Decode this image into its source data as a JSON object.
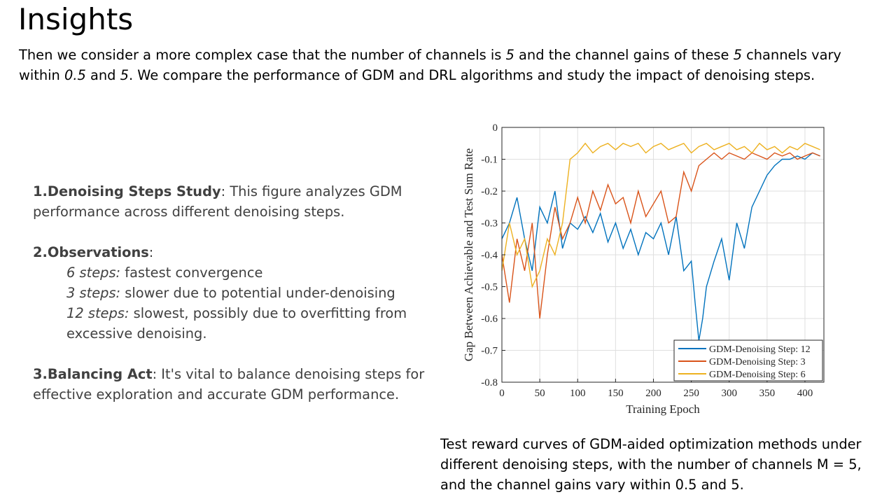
{
  "slide": {
    "title": "Insights",
    "intro_p1": "Then we consider a more complex case that the number of channels is ",
    "intro_i1": "5",
    "intro_p2": " and the channel gains of these ",
    "intro_i2": "5",
    "intro_p3": " channels vary",
    "intro_p4": "within ",
    "intro_i3": "0.5",
    "intro_p5": " and ",
    "intro_i4": "5",
    "intro_p6": ". We compare the performance of GDM and DRL algorithms and study the impact of denoising steps.",
    "points": {
      "p1_head": "1.Denoising Steps Study",
      "p1_line1": ": This figure analyzes GDM",
      "p1_line2": "performance across different denoising steps.",
      "p2_head": "2.Observations",
      "p2_colon": ":",
      "s1_head": "6 steps:",
      "s1_text": " fastest convergence",
      "s2_head": "3 steps:",
      "s2_text": " slower due to potential under-denoising",
      "s3_head": "12 steps:",
      "s3_text": " slowest, possibly due to overfitting from",
      "s3_text2": "excessive denoising.",
      "p3_head": "3.Balancing Act",
      "p3_line1": ": It's vital to balance denoising steps for",
      "p3_line2": "effective exploration and accurate GDM performance."
    },
    "caption": {
      "line1": "Test reward curves of GDM-aided optimization methods under",
      "line2": "different denoising steps, with the number of channels M = 5,",
      "line3": "and the channel gains vary within 0.5 and 5."
    }
  },
  "chart_data": {
    "type": "line",
    "xlabel": "Training Epoch",
    "ylabel": "Gap Between Achievable and Test Sum Rate",
    "xlim": [
      0,
      425
    ],
    "ylim": [
      -0.8,
      0
    ],
    "xticks": [
      0,
      50,
      100,
      150,
      200,
      250,
      300,
      350,
      400
    ],
    "yticks": [
      0,
      -0.1,
      -0.2,
      -0.3,
      -0.4,
      -0.5,
      -0.6,
      -0.7,
      -0.8
    ],
    "grid": true,
    "legend_position": "bottom-right",
    "series": [
      {
        "name": "GDM-Denoising Step: 12",
        "color": "#0072BD",
        "x": [
          0,
          10,
          20,
          30,
          40,
          50,
          60,
          70,
          80,
          90,
          100,
          110,
          120,
          130,
          140,
          150,
          160,
          170,
          180,
          190,
          200,
          210,
          220,
          230,
          240,
          250,
          255,
          260,
          265,
          270,
          280,
          290,
          300,
          310,
          320,
          330,
          340,
          350,
          360,
          370,
          380,
          390,
          400,
          410,
          420
        ],
        "values": [
          -0.35,
          -0.3,
          -0.22,
          -0.35,
          -0.45,
          -0.25,
          -0.3,
          -0.2,
          -0.38,
          -0.3,
          -0.32,
          -0.28,
          -0.33,
          -0.27,
          -0.36,
          -0.3,
          -0.38,
          -0.32,
          -0.4,
          -0.33,
          -0.35,
          -0.3,
          -0.4,
          -0.28,
          -0.45,
          -0.42,
          -0.55,
          -0.67,
          -0.6,
          -0.5,
          -0.42,
          -0.35,
          -0.48,
          -0.3,
          -0.38,
          -0.25,
          -0.2,
          -0.15,
          -0.12,
          -0.1,
          -0.1,
          -0.09,
          -0.1,
          -0.08,
          -0.09
        ]
      },
      {
        "name": "GDM-Denoising Step: 3",
        "color": "#D95319",
        "x": [
          0,
          10,
          20,
          30,
          40,
          50,
          60,
          70,
          80,
          90,
          100,
          110,
          120,
          130,
          140,
          150,
          160,
          170,
          180,
          190,
          200,
          210,
          220,
          230,
          240,
          250,
          260,
          270,
          280,
          290,
          300,
          310,
          320,
          330,
          340,
          350,
          360,
          370,
          380,
          390,
          400,
          410,
          420
        ],
        "values": [
          -0.4,
          -0.55,
          -0.35,
          -0.45,
          -0.3,
          -0.6,
          -0.4,
          -0.25,
          -0.35,
          -0.3,
          -0.22,
          -0.3,
          -0.2,
          -0.26,
          -0.18,
          -0.24,
          -0.22,
          -0.3,
          -0.2,
          -0.28,
          -0.24,
          -0.2,
          -0.3,
          -0.28,
          -0.14,
          -0.2,
          -0.12,
          -0.1,
          -0.08,
          -0.1,
          -0.08,
          -0.09,
          -0.1,
          -0.08,
          -0.09,
          -0.1,
          -0.08,
          -0.09,
          -0.08,
          -0.1,
          -0.09,
          -0.08,
          -0.09
        ]
      },
      {
        "name": "GDM-Denoising Step: 6",
        "color": "#EDB120",
        "x": [
          0,
          10,
          20,
          30,
          40,
          50,
          60,
          70,
          80,
          90,
          100,
          110,
          120,
          130,
          140,
          150,
          160,
          170,
          180,
          190,
          200,
          210,
          220,
          230,
          240,
          250,
          260,
          270,
          280,
          290,
          300,
          310,
          320,
          330,
          340,
          350,
          360,
          370,
          380,
          390,
          400,
          410,
          420
        ],
        "values": [
          -0.45,
          -0.3,
          -0.4,
          -0.35,
          -0.5,
          -0.45,
          -0.35,
          -0.4,
          -0.3,
          -0.1,
          -0.08,
          -0.05,
          -0.08,
          -0.06,
          -0.05,
          -0.07,
          -0.05,
          -0.06,
          -0.05,
          -0.08,
          -0.06,
          -0.05,
          -0.07,
          -0.06,
          -0.05,
          -0.08,
          -0.06,
          -0.05,
          -0.07,
          -0.06,
          -0.05,
          -0.07,
          -0.06,
          -0.08,
          -0.05,
          -0.07,
          -0.06,
          -0.08,
          -0.06,
          -0.07,
          -0.05,
          -0.06,
          -0.07
        ]
      }
    ]
  }
}
